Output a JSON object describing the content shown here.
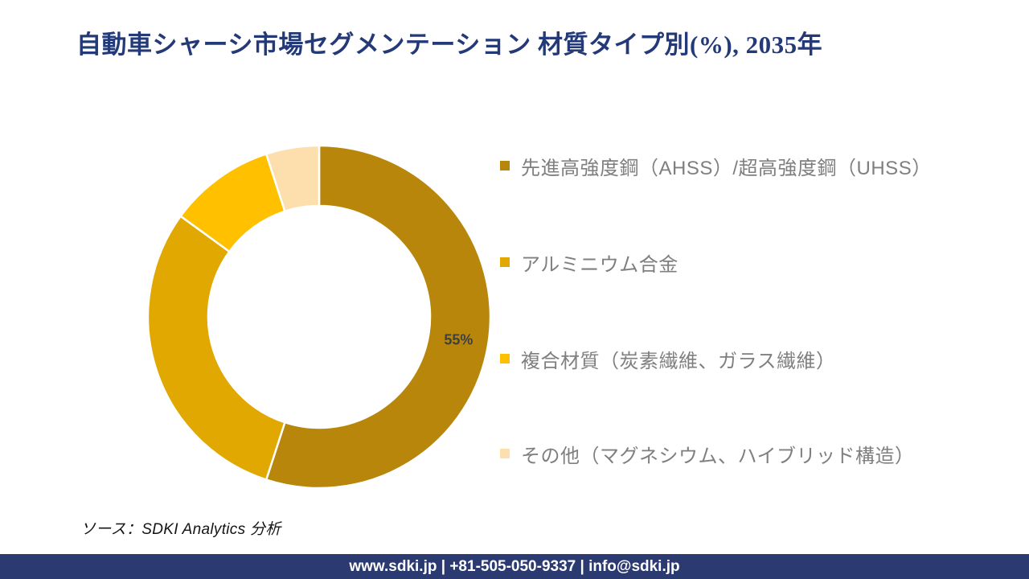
{
  "page": {
    "source": "ソース：SDKI Analytics 分析",
    "footer": "www.sdki.jp | +81-505-050-9337 | info@sdki.jp"
  },
  "chart_data": {
    "type": "pie",
    "subtype": "donut",
    "title": "自動車シャーシ市場セグメンテーション 材質タイプ別(%), 2035年",
    "categories": [
      "先進高強度鋼（AHSS）/超高強度鋼（UHSS）",
      "アルミニウム合金",
      "複合材質（炭素繊維、ガラス繊維）",
      "その他（マグネシウム、ハイブリッド構造）"
    ],
    "values": [
      55,
      30,
      10,
      5
    ],
    "unit": "%",
    "colors": [
      "#B8860B",
      "#E0A800",
      "#FFC000",
      "#FCDFAD"
    ],
    "data_labels": [
      "55%",
      "",
      "",
      ""
    ],
    "start_angle_deg": 0,
    "direction": "clockwise",
    "hole_ratio": 0.65,
    "legend_position": "right",
    "separator_color": "#FFFFFF",
    "data_label_color": "#404040",
    "legend_text_color": "#7F7F7F",
    "title_color": "#243A78",
    "footer_bg_color": "#2B3A70"
  }
}
